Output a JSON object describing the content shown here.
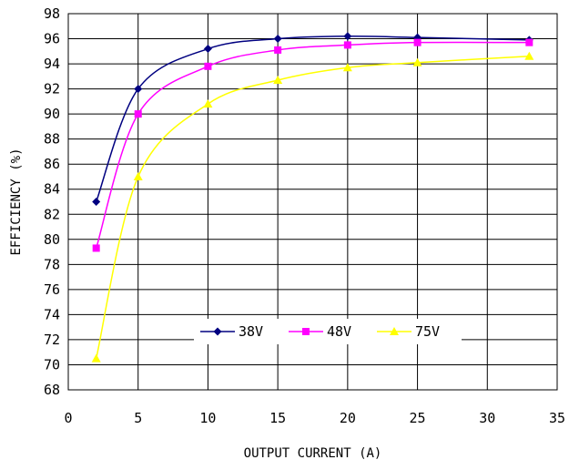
{
  "chart_data": {
    "type": "line",
    "title": "",
    "xlabel": "OUTPUT CURRENT (A)",
    "ylabel": "EFFICIENCY (%)",
    "xlim": [
      0,
      35
    ],
    "ylim": [
      68,
      98
    ],
    "xticks": [
      0,
      5,
      10,
      15,
      20,
      25,
      30,
      35
    ],
    "yticks": [
      68,
      70,
      72,
      74,
      76,
      78,
      80,
      82,
      84,
      86,
      88,
      90,
      92,
      94,
      96,
      98
    ],
    "grid": true,
    "legend_position": "bottom-center",
    "series": [
      {
        "name": "38V",
        "color": "#000080",
        "marker": "diamond",
        "x": [
          2,
          5,
          10,
          15,
          20,
          25,
          33
        ],
        "y": [
          83.0,
          92.0,
          95.2,
          96.0,
          96.2,
          96.1,
          95.9
        ]
      },
      {
        "name": "48V",
        "color": "#ff00ff",
        "marker": "square",
        "x": [
          2,
          5,
          10,
          15,
          20,
          25,
          33
        ],
        "y": [
          79.3,
          90.0,
          93.8,
          95.1,
          95.5,
          95.7,
          95.7
        ]
      },
      {
        "name": "75V",
        "color": "#ffff00",
        "marker": "triangle",
        "x": [
          2,
          5,
          10,
          15,
          20,
          25,
          33
        ],
        "y": [
          70.5,
          85.0,
          90.8,
          92.7,
          93.7,
          94.1,
          94.6
        ]
      }
    ]
  }
}
